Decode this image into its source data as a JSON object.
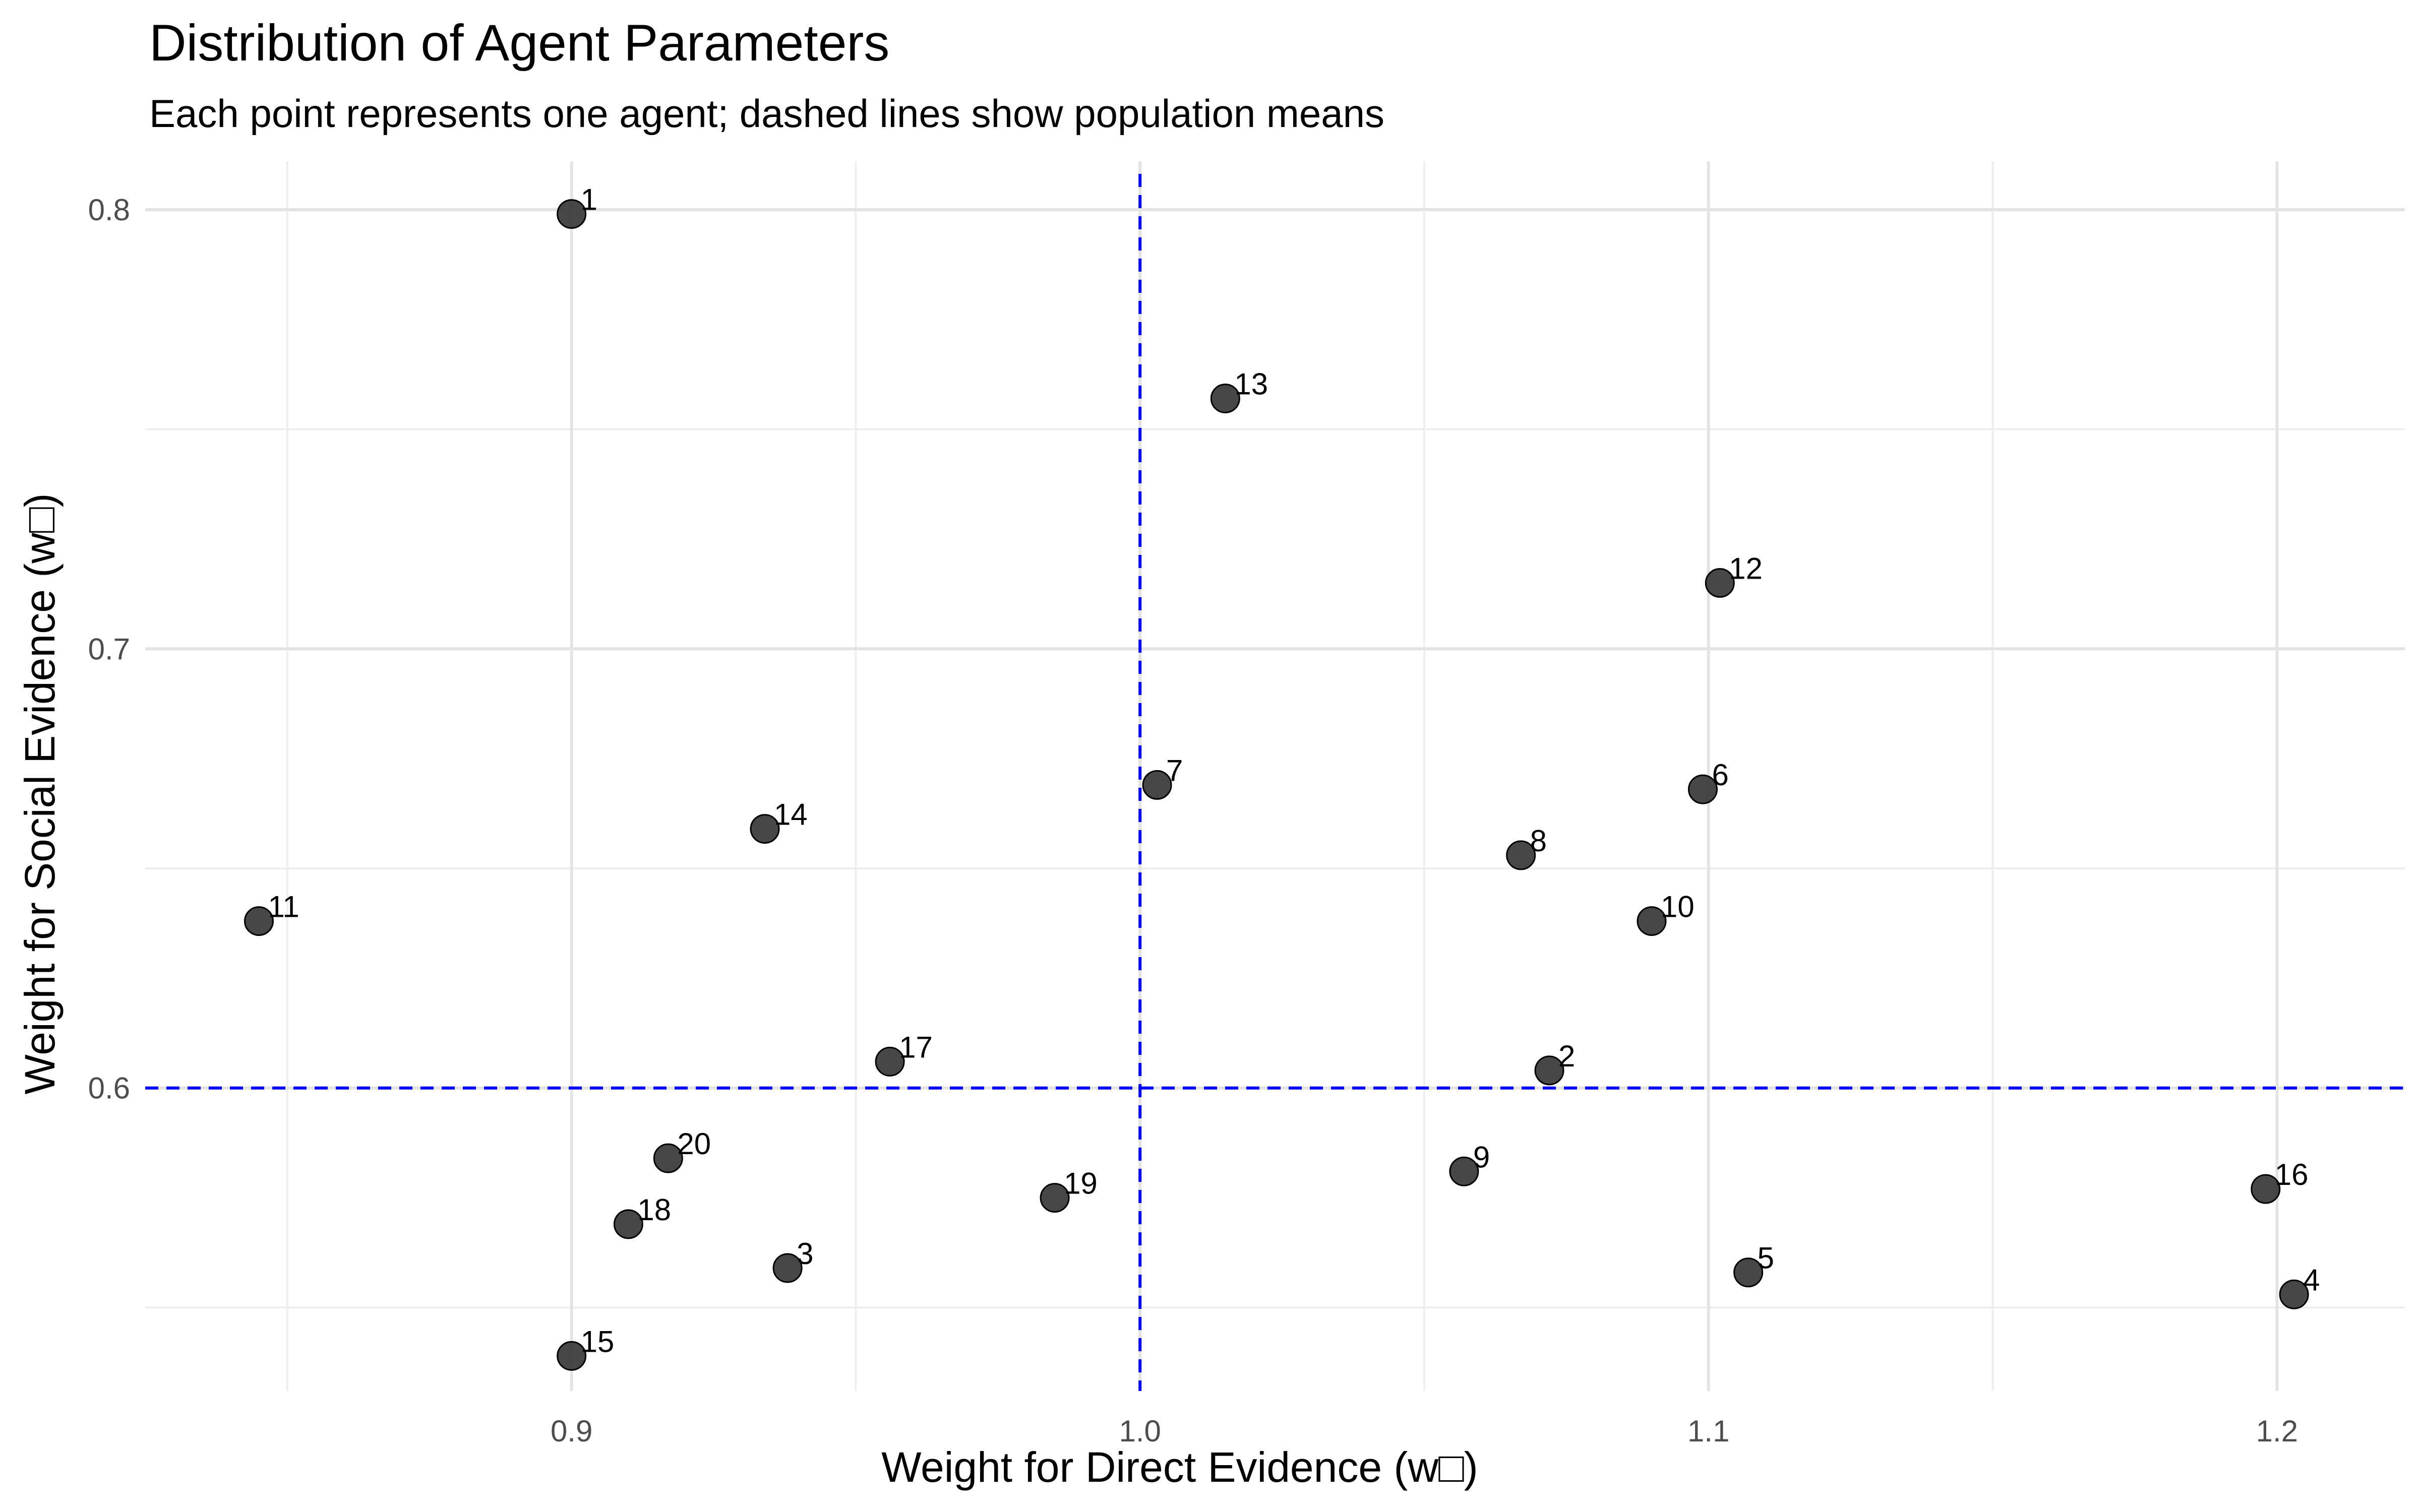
{
  "chart_data": {
    "type": "scatter",
    "title": "Distribution of Agent Parameters",
    "subtitle": "Each point represents one agent; dashed lines show population means",
    "xlabel": "Weight for Direct Evidence (w□)",
    "ylabel": "Weight for Social Evidence (w□)",
    "xlim": [
      0.825,
      1.2225
    ],
    "ylim": [
      0.531,
      0.811
    ],
    "x_ticks": [
      0.9,
      1.0,
      1.1,
      1.2
    ],
    "x_tick_labels": [
      "0.9",
      "1.0",
      "1.1",
      "1.2"
    ],
    "y_ticks": [
      0.6,
      0.7,
      0.8
    ],
    "y_tick_labels": [
      "0.6",
      "0.7",
      "0.8"
    ],
    "x_minor_ticks": [
      0.85,
      0.95,
      1.05,
      1.15
    ],
    "y_minor_ticks": [
      0.55,
      0.65,
      0.75
    ],
    "grid": true,
    "mean_lines": {
      "x": 1.0,
      "y": 0.6,
      "style": "dashed",
      "color": "#0000ff"
    },
    "point_color": "#333333",
    "points": [
      {
        "label": "1",
        "x": 0.9,
        "y": 0.799
      },
      {
        "label": "2",
        "x": 1.072,
        "y": 0.604
      },
      {
        "label": "3",
        "x": 0.938,
        "y": 0.559
      },
      {
        "label": "4",
        "x": 1.203,
        "y": 0.553
      },
      {
        "label": "5",
        "x": 1.107,
        "y": 0.558
      },
      {
        "label": "6",
        "x": 1.099,
        "y": 0.668
      },
      {
        "label": "7",
        "x": 1.003,
        "y": 0.669
      },
      {
        "label": "8",
        "x": 1.067,
        "y": 0.653
      },
      {
        "label": "9",
        "x": 1.057,
        "y": 0.581
      },
      {
        "label": "10",
        "x": 1.09,
        "y": 0.638
      },
      {
        "label": "11",
        "x": 0.845,
        "y": 0.638
      },
      {
        "label": "12",
        "x": 1.102,
        "y": 0.715
      },
      {
        "label": "13",
        "x": 1.015,
        "y": 0.757
      },
      {
        "label": "14",
        "x": 0.934,
        "y": 0.659
      },
      {
        "label": "15",
        "x": 0.9,
        "y": 0.539
      },
      {
        "label": "16",
        "x": 1.198,
        "y": 0.577
      },
      {
        "label": "17",
        "x": 0.956,
        "y": 0.606
      },
      {
        "label": "18",
        "x": 0.91,
        "y": 0.569
      },
      {
        "label": "19",
        "x": 0.985,
        "y": 0.575
      },
      {
        "label": "20",
        "x": 0.917,
        "y": 0.584
      }
    ]
  }
}
